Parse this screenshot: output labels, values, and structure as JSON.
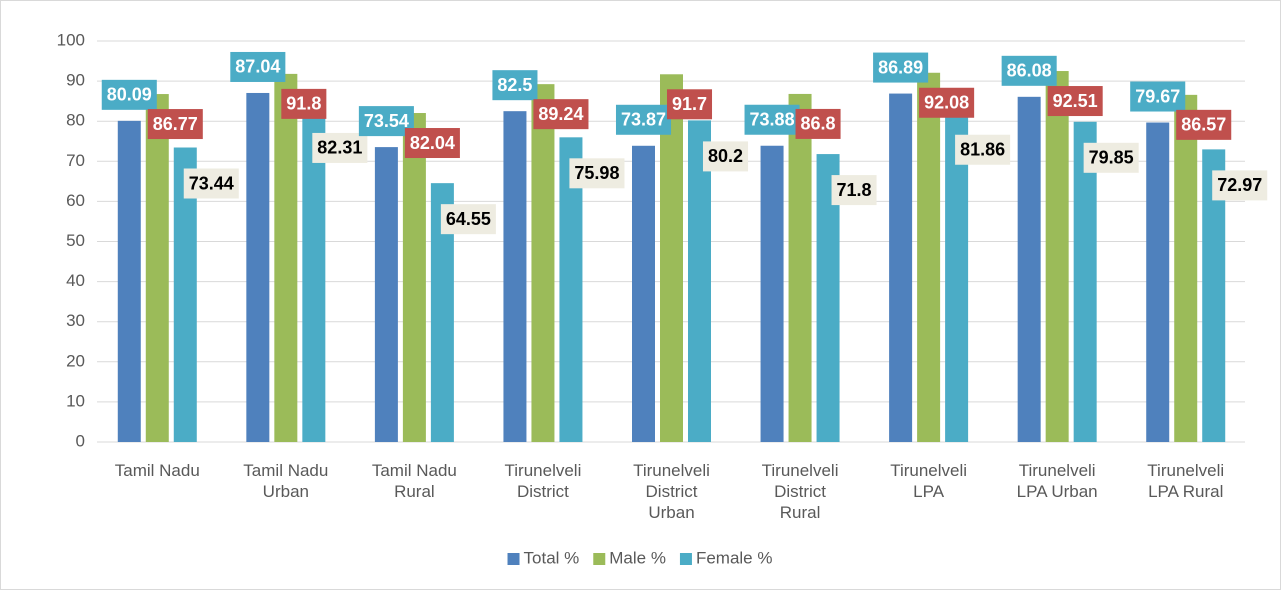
{
  "chart_data": {
    "type": "bar",
    "categories": [
      "Tamil Nadu",
      "Tamil Nadu Urban",
      "Tamil Nadu Rural",
      "Tirunelveli District",
      "Tirunelveli District Urban",
      "Tirunelveli District Rural",
      "Tirunelveli LPA",
      "Tirunelveli LPA Urban",
      "Tirunelveli LPA Rural"
    ],
    "series": [
      {
        "name": "Total %",
        "color": "#4f81bd",
        "label_color": "#4bacc6",
        "label_text_color": "#ffffff",
        "values": [
          80.09,
          87.04,
          73.54,
          82.5,
          73.87,
          73.88,
          86.89,
          86.08,
          79.67
        ]
      },
      {
        "name": "Male %",
        "color": "#9bbb59",
        "label_color": "#c0504d",
        "label_text_color": "#ffffff",
        "values": [
          86.77,
          91.8,
          82.04,
          89.24,
          91.7,
          86.8,
          92.08,
          92.51,
          86.57
        ]
      },
      {
        "name": "Female %",
        "color": "#4bacc6",
        "label_color": "#eeece1",
        "label_text_color": "#000000",
        "values": [
          73.44,
          82.31,
          64.55,
          75.98,
          80.2,
          71.8,
          81.86,
          79.85,
          72.97
        ]
      }
    ],
    "ylim": [
      0,
      100
    ],
    "yticks": [
      0,
      10,
      20,
      30,
      40,
      50,
      60,
      70,
      80,
      90,
      100
    ],
    "grid": true,
    "legend": "bottom"
  }
}
